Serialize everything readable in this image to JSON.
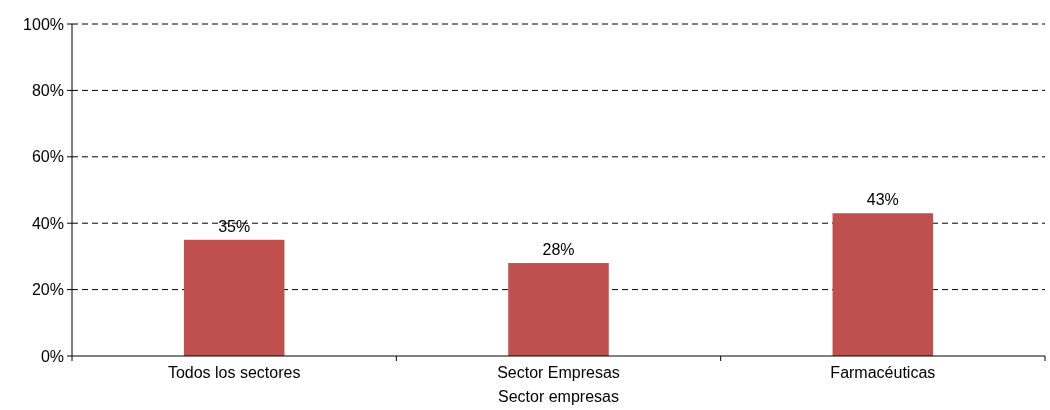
{
  "chart_data": {
    "type": "bar",
    "categories": [
      "Todos los sectores",
      "Sector Empresas",
      "Farmacéuticas"
    ],
    "values": [
      35,
      28,
      43
    ],
    "color": "#c0504d",
    "ylim": [
      0,
      100
    ],
    "yticks": [
      {
        "value": 0,
        "label": "0%"
      },
      {
        "value": 20,
        "label": "20%"
      },
      {
        "value": 40,
        "label": "40%"
      },
      {
        "value": 60,
        "label": "60%"
      },
      {
        "value": 80,
        "label": "80%"
      },
      {
        "value": 100,
        "label": "100%"
      }
    ],
    "grid": "y",
    "line_style": "dashed",
    "value_labels": [
      "35%",
      "28%",
      "43%"
    ],
    "annotations": [
      "Sector empresas"
    ]
  }
}
